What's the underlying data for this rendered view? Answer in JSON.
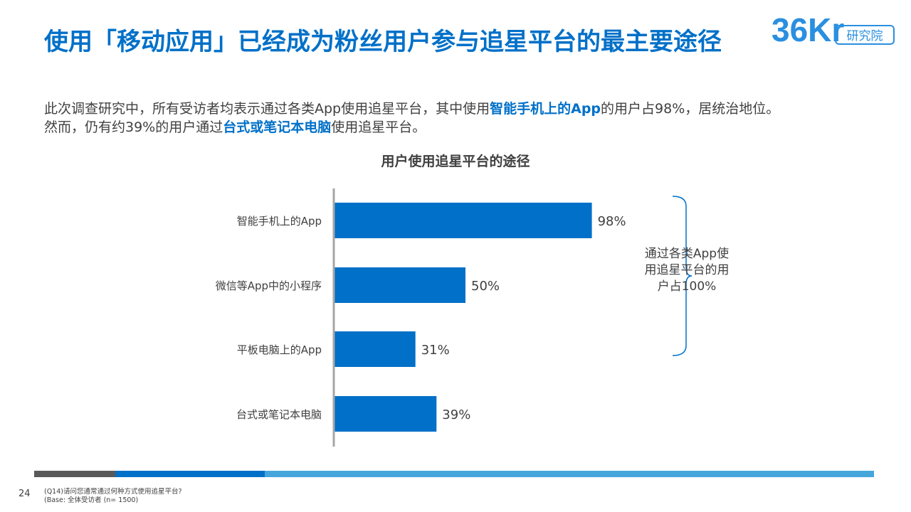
{
  "header": {
    "title": "使用「移动应用」已经成为粉丝用户参与追星平台的最主要途径",
    "logo_text": "36Kr",
    "logo_badge": "研究院"
  },
  "subtitle": {
    "line1_before": "此次调查研究中，所有受访者均表示通过各类App使用追星平台，其中使用",
    "line1_highlight": "智能手机上的App",
    "line1_after": "的用户占98%，居统治地位。",
    "line2_before": "然而，仍有约39%的用户通过",
    "line2_highlight": "台式或笔记本电脑",
    "line2_after": "使用追星平台。"
  },
  "chart_data": {
    "type": "bar",
    "orientation": "horizontal",
    "title": "用户使用追星平台的途径",
    "categories": [
      "智能手机上的App",
      "微信等App中的小程序",
      "平板电脑上的App",
      "台式或笔记本电脑"
    ],
    "values": [
      98,
      50,
      31,
      39
    ],
    "value_labels": [
      "98%",
      "50%",
      "31%",
      "39%"
    ],
    "unit": "%",
    "xlim": [
      0,
      100
    ],
    "bar_color": "#0070c8",
    "grid": false,
    "annotation": {
      "text": "通过各类App使用追星平台的用户占100%",
      "lines": [
        "通过各类App使",
        "用追星平台的用",
        "户占100%"
      ],
      "spans_categories": [
        "智能手机上的App",
        "微信等App中的小程序",
        "平板电脑上的App"
      ]
    }
  },
  "footer": {
    "page_number": "24",
    "question": "(Q14)请问您通常通过何种方式使用追星平台?",
    "base": "(Base: 全体受访者 (n= 1500)",
    "bar_colors": [
      "#595959",
      "#0070c8",
      "#45a6dc"
    ]
  }
}
